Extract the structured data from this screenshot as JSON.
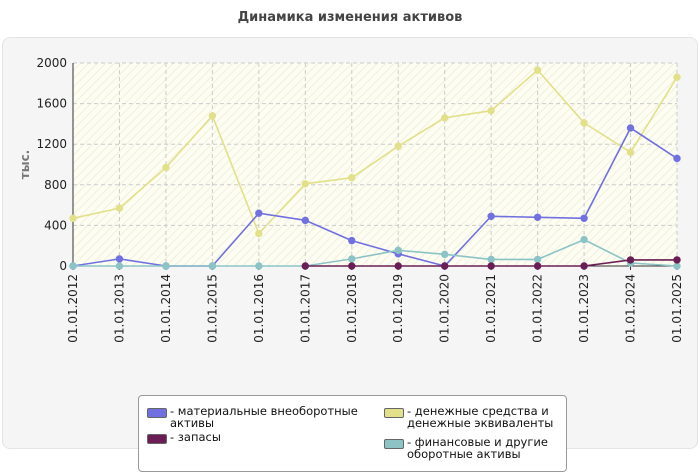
{
  "chart_data": {
    "type": "line",
    "title": "Динамика изменения активов",
    "ylabel": "тыс.",
    "xlabel": "",
    "ylim": [
      0,
      2000
    ],
    "yticks": [
      0,
      400,
      800,
      1200,
      1600,
      2000
    ],
    "categories": [
      "01.01.2012",
      "01.01.2013",
      "01.01.2014",
      "01.01.2015",
      "01.01.2016",
      "01.01.2017",
      "01.01.2018",
      "01.01.2019",
      "01.01.2020",
      "01.01.2021",
      "01.01.2022",
      "01.01.2023",
      "01.01.2024",
      "01.01.2025"
    ],
    "grid": true,
    "legend_position": "bottom",
    "series": [
      {
        "name": "материальные внеоборотные активы",
        "legend_lines": [
          "- материальные внеоборотные",
          "активы"
        ],
        "color": "#7070e0",
        "values": [
          0,
          70,
          0,
          0,
          520,
          450,
          250,
          120,
          0,
          490,
          480,
          470,
          1360,
          1060
        ]
      },
      {
        "name": "запасы",
        "legend_lines": [
          "- запасы"
        ],
        "color": "#6b1e55",
        "values": [
          null,
          null,
          null,
          null,
          null,
          0,
          0,
          0,
          0,
          0,
          0,
          0,
          60,
          60
        ]
      },
      {
        "name": "денежные средства и денежные эквиваленты",
        "legend_lines": [
          "- денежные средства и",
          "денежные эквиваленты"
        ],
        "color": "#e2e08a",
        "values": [
          470,
          570,
          970,
          1480,
          320,
          810,
          870,
          1180,
          1460,
          1530,
          1930,
          1410,
          1120,
          1860
        ]
      },
      {
        "name": "финансовые и другие оборотные активы",
        "legend_lines": [
          "- финансовые и другие",
          "оборотные активы"
        ],
        "color": "#8cc4c6",
        "values": [
          0,
          0,
          0,
          0,
          0,
          0,
          70,
          155,
          115,
          65,
          65,
          260,
          30,
          0
        ]
      }
    ]
  }
}
